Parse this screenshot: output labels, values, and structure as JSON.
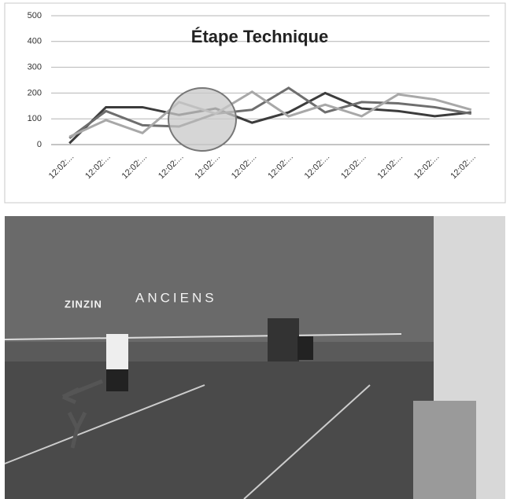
{
  "chart_data": {
    "type": "line",
    "title": "Étape Technique",
    "categories": [
      "12:02:...",
      "12:02:...",
      "12:02:...",
      "12:02:...",
      "12:02:...",
      "12:02:...",
      "12:02:...",
      "12:02:...",
      "12:02:...",
      "12:02:...",
      "12:02:...",
      "12:02:..."
    ],
    "series": [
      {
        "color": "#3c3c3c",
        "values": [
          5,
          145,
          145,
          115,
          140,
          85,
          125,
          200,
          140,
          130,
          110,
          125
        ]
      },
      {
        "color": "#6e6e6e",
        "values": [
          25,
          130,
          75,
          70,
          120,
          135,
          220,
          125,
          165,
          160,
          145,
          120
        ]
      },
      {
        "color": "#a8a8a8",
        "values": [
          30,
          95,
          45,
          165,
          120,
          205,
          110,
          155,
          110,
          195,
          175,
          135
        ]
      }
    ],
    "ylim": [
      0,
      500
    ],
    "yticks": [
      0,
      100,
      200,
      300,
      400,
      500
    ],
    "grid": true
  },
  "photo_text": [
    "ZINZIN",
    "ANCIENS"
  ]
}
